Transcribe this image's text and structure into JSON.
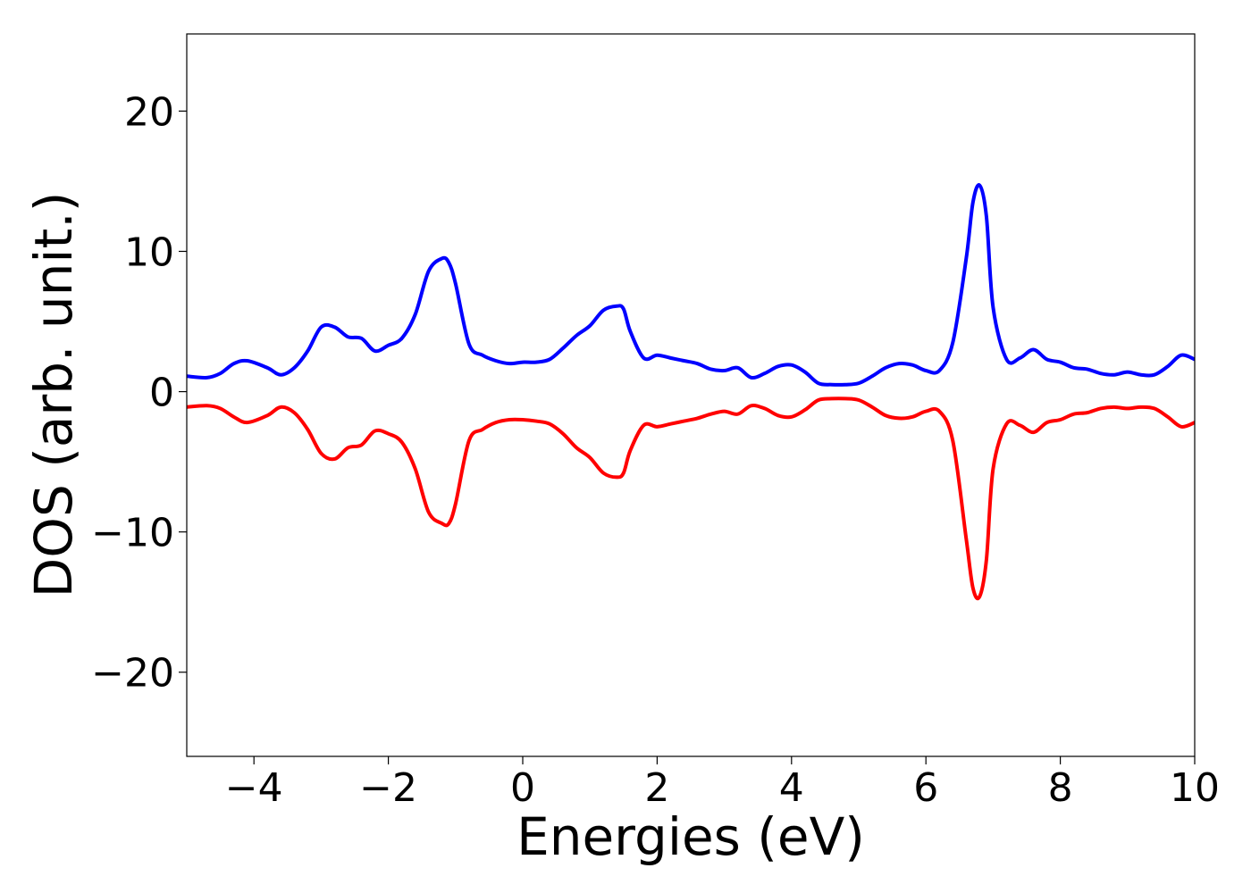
{
  "chart_data": {
    "type": "line",
    "xlabel": "Energies (eV)",
    "ylabel": "DOS (arb. unit.)",
    "xlim": [
      -5,
      10
    ],
    "ylim": [
      -26,
      25.5
    ],
    "grid": false,
    "x_ticks": [
      -4,
      -2,
      0,
      2,
      4,
      6,
      8,
      10
    ],
    "y_ticks": [
      -20,
      -10,
      0,
      10,
      20
    ],
    "x_tick_labels": [
      "−4",
      "−2",
      "0",
      "2",
      "4",
      "6",
      "8",
      "10"
    ],
    "y_tick_labels": [
      "−20",
      "−10",
      "0",
      "10",
      "20"
    ],
    "series": [
      {
        "color": "#0000ff",
        "x": [
          -5.0,
          -4.7,
          -4.5,
          -4.3,
          -4.1,
          -3.8,
          -3.6,
          -3.4,
          -3.2,
          -3.0,
          -2.8,
          -2.6,
          -2.4,
          -2.2,
          -2.0,
          -1.8,
          -1.6,
          -1.4,
          -1.2,
          -1.1,
          -1.0,
          -0.8,
          -0.6,
          -0.4,
          -0.2,
          0.0,
          0.2,
          0.4,
          0.6,
          0.8,
          1.0,
          1.2,
          1.4,
          1.5,
          1.6,
          1.8,
          2.0,
          2.2,
          2.4,
          2.6,
          2.8,
          3.0,
          3.2,
          3.4,
          3.6,
          3.8,
          4.0,
          4.2,
          4.4,
          4.6,
          4.8,
          5.0,
          5.2,
          5.4,
          5.6,
          5.8,
          6.0,
          6.2,
          6.4,
          6.6,
          6.7,
          6.8,
          6.9,
          7.0,
          7.2,
          7.4,
          7.6,
          7.8,
          8.0,
          8.2,
          8.4,
          8.6,
          8.8,
          9.0,
          9.2,
          9.4,
          9.6,
          9.8,
          10.0
        ],
        "y": [
          1.1,
          1.0,
          1.3,
          2.0,
          2.2,
          1.7,
          1.2,
          1.7,
          2.9,
          4.6,
          4.6,
          3.9,
          3.8,
          2.9,
          3.3,
          3.8,
          5.5,
          8.6,
          9.5,
          9.2,
          7.7,
          3.4,
          2.6,
          2.2,
          2.0,
          2.1,
          2.1,
          2.3,
          3.1,
          4.0,
          4.7,
          5.8,
          6.1,
          5.9,
          4.3,
          2.4,
          2.6,
          2.4,
          2.2,
          2.0,
          1.6,
          1.5,
          1.7,
          1.0,
          1.3,
          1.8,
          1.9,
          1.4,
          0.6,
          0.5,
          0.5,
          0.6,
          1.1,
          1.7,
          2.0,
          1.9,
          1.5,
          1.5,
          3.5,
          9.5,
          13.5,
          14.7,
          12.5,
          6.0,
          2.3,
          2.4,
          3.0,
          2.3,
          2.1,
          1.7,
          1.6,
          1.3,
          1.2,
          1.4,
          1.2,
          1.2,
          1.8,
          2.6,
          2.3
        ]
      },
      {
        "color": "#ff0000",
        "x": [
          -5.0,
          -4.7,
          -4.5,
          -4.3,
          -4.1,
          -3.8,
          -3.6,
          -3.4,
          -3.2,
          -3.0,
          -2.8,
          -2.6,
          -2.4,
          -2.2,
          -2.0,
          -1.8,
          -1.6,
          -1.4,
          -1.2,
          -1.1,
          -1.0,
          -0.8,
          -0.6,
          -0.4,
          -0.2,
          0.0,
          0.2,
          0.4,
          0.6,
          0.8,
          1.0,
          1.2,
          1.4,
          1.5,
          1.6,
          1.8,
          2.0,
          2.2,
          2.4,
          2.6,
          2.8,
          3.0,
          3.2,
          3.4,
          3.6,
          3.8,
          4.0,
          4.2,
          4.4,
          4.6,
          4.8,
          5.0,
          5.2,
          5.4,
          5.6,
          5.8,
          6.0,
          6.2,
          6.4,
          6.6,
          6.7,
          6.8,
          6.9,
          7.0,
          7.2,
          7.4,
          7.6,
          7.8,
          8.0,
          8.2,
          8.4,
          8.6,
          8.8,
          9.0,
          9.2,
          9.4,
          9.6,
          9.8,
          10.0
        ],
        "y": [
          -1.1,
          -1.0,
          -1.2,
          -1.8,
          -2.2,
          -1.7,
          -1.1,
          -1.5,
          -2.7,
          -4.4,
          -4.8,
          -4.0,
          -3.8,
          -2.8,
          -3.0,
          -3.6,
          -5.5,
          -8.6,
          -9.4,
          -9.4,
          -8.0,
          -3.5,
          -2.7,
          -2.2,
          -2.0,
          -2.0,
          -2.1,
          -2.3,
          -3.0,
          -4.0,
          -4.7,
          -5.8,
          -6.1,
          -5.8,
          -4.2,
          -2.4,
          -2.5,
          -2.3,
          -2.1,
          -1.9,
          -1.6,
          -1.4,
          -1.6,
          -1.0,
          -1.2,
          -1.7,
          -1.8,
          -1.3,
          -0.6,
          -0.5,
          -0.5,
          -0.6,
          -1.1,
          -1.7,
          -1.9,
          -1.8,
          -1.4,
          -1.4,
          -3.5,
          -10.5,
          -14.0,
          -14.6,
          -12.0,
          -5.5,
          -2.3,
          -2.4,
          -2.9,
          -2.2,
          -2.0,
          -1.6,
          -1.5,
          -1.2,
          -1.1,
          -1.2,
          -1.1,
          -1.2,
          -1.8,
          -2.5,
          -2.2
        ]
      }
    ]
  }
}
